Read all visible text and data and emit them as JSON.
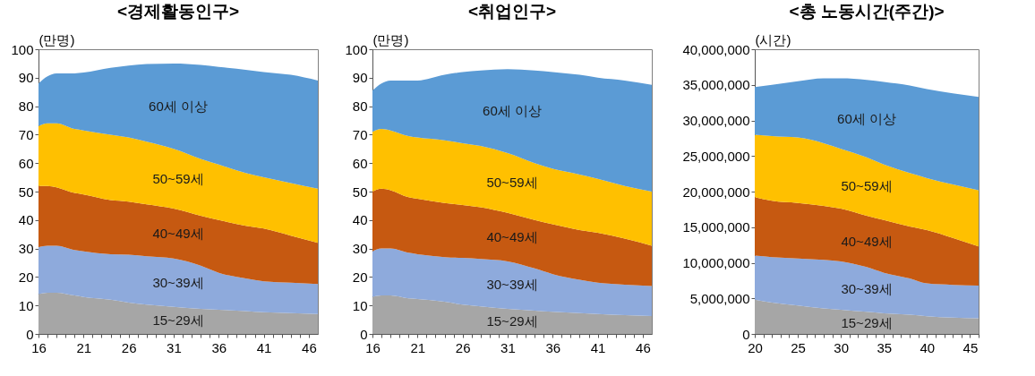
{
  "chart_data": [
    {
      "type": "area",
      "title": "<경제활동인구>",
      "ylabel": "(만명)",
      "stacked": true,
      "grid": false,
      "legend": false,
      "x": [
        16,
        17,
        18,
        20,
        21,
        24,
        26,
        28,
        31,
        34,
        36,
        39,
        41,
        44,
        47
      ],
      "xlim": [
        16,
        47
      ],
      "xticks": [
        16,
        {
          "value": 17,
          "label": null
        },
        {
          "value": 18,
          "label": null
        },
        {
          "value": 19,
          "label": null
        },
        {
          "value": 20,
          "label": null
        },
        21,
        {
          "value": 22,
          "label": null
        },
        {
          "value": 23,
          "label": null
        },
        {
          "value": 24,
          "label": null
        },
        {
          "value": 25,
          "label": null
        },
        26,
        {
          "value": 27,
          "label": null
        },
        {
          "value": 28,
          "label": null
        },
        {
          "value": 29,
          "label": null
        },
        {
          "value": 30,
          "label": null
        },
        31,
        {
          "value": 32,
          "label": null
        },
        {
          "value": 33,
          "label": null
        },
        {
          "value": 34,
          "label": null
        },
        {
          "value": 35,
          "label": null
        },
        36,
        {
          "value": 37,
          "label": null
        },
        {
          "value": 38,
          "label": null
        },
        {
          "value": 39,
          "label": null
        },
        {
          "value": 40,
          "label": null
        },
        41,
        {
          "value": 42,
          "label": null
        },
        {
          "value": 43,
          "label": null
        },
        {
          "value": 44,
          "label": null
        },
        {
          "value": 45,
          "label": null
        },
        46
      ],
      "ylim": [
        0,
        100
      ],
      "yticks": [
        0,
        10,
        20,
        30,
        40,
        50,
        60,
        70,
        80,
        90,
        100
      ],
      "series": [
        {
          "name": "15~29세",
          "color": "#a6a6a6",
          "values": [
            14,
            14.5,
            14.5,
            13.5,
            13,
            12,
            11,
            10.3,
            9.5,
            8.8,
            8.5,
            8,
            7.6,
            7.3,
            7
          ]
        },
        {
          "name": "30~39세",
          "color": "#8eaadc",
          "values": [
            16.5,
            16.5,
            16.5,
            16,
            16,
            16,
            16.8,
            17,
            17,
            15.2,
            13,
            11.5,
            10.9,
            10.7,
            10.5
          ]
        },
        {
          "name": "40~49세",
          "color": "#c65911",
          "values": [
            21.5,
            21,
            20.5,
            20,
            20,
            19,
            18.7,
            18.2,
            17.5,
            17.5,
            18.5,
            18.5,
            18.5,
            16.5,
            14.5
          ]
        },
        {
          "name": "50~59세",
          "color": "#ffc000",
          "values": [
            21,
            22,
            22.5,
            22.5,
            22.5,
            23,
            22.5,
            22,
            21,
            20,
            19.5,
            18.5,
            18,
            18.5,
            19
          ]
        },
        {
          "name": "60세 이상",
          "color": "#5b9bd5",
          "values": [
            15,
            16.5,
            17.5,
            19.5,
            20.3,
            23.5,
            25.3,
            27.3,
            30,
            33,
            34.3,
            36.3,
            37,
            38,
            38
          ]
        }
      ]
    },
    {
      "type": "area",
      "title": "<취업인구>",
      "ylabel": "(만명)",
      "stacked": true,
      "grid": false,
      "legend": false,
      "x": [
        16,
        17,
        18,
        20,
        21,
        24,
        26,
        28,
        31,
        34,
        36,
        39,
        41,
        44,
        47
      ],
      "xlim": [
        16,
        47
      ],
      "xticks": [
        16,
        {
          "value": 17,
          "label": null
        },
        {
          "value": 18,
          "label": null
        },
        {
          "value": 19,
          "label": null
        },
        {
          "value": 20,
          "label": null
        },
        21,
        {
          "value": 22,
          "label": null
        },
        {
          "value": 23,
          "label": null
        },
        {
          "value": 24,
          "label": null
        },
        {
          "value": 25,
          "label": null
        },
        26,
        {
          "value": 27,
          "label": null
        },
        {
          "value": 28,
          "label": null
        },
        {
          "value": 29,
          "label": null
        },
        {
          "value": 30,
          "label": null
        },
        31,
        {
          "value": 32,
          "label": null
        },
        {
          "value": 33,
          "label": null
        },
        {
          "value": 34,
          "label": null
        },
        {
          "value": 35,
          "label": null
        },
        36,
        {
          "value": 37,
          "label": null
        },
        {
          "value": 38,
          "label": null
        },
        {
          "value": 39,
          "label": null
        },
        {
          "value": 40,
          "label": null
        },
        41,
        {
          "value": 42,
          "label": null
        },
        {
          "value": 43,
          "label": null
        },
        {
          "value": 44,
          "label": null
        },
        {
          "value": 45,
          "label": null
        },
        46
      ],
      "ylim": [
        0,
        100
      ],
      "yticks": [
        0,
        10,
        20,
        30,
        40,
        50,
        60,
        70,
        80,
        90,
        100
      ],
      "series": [
        {
          "name": "15~29세",
          "color": "#a6a6a6",
          "values": [
            13,
            13.5,
            13.5,
            12.5,
            12.3,
            11.3,
            10.3,
            9.7,
            8.8,
            8.2,
            7.8,
            7.3,
            7,
            6.6,
            6.3
          ]
        },
        {
          "name": "30~39세",
          "color": "#8eaadc",
          "values": [
            16,
            16.5,
            16.5,
            16,
            15.7,
            15.7,
            16.4,
            16.6,
            16.7,
            14.8,
            13.2,
            11.7,
            11,
            10.7,
            10.5
          ]
        },
        {
          "name": "40~49세",
          "color": "#c65911",
          "values": [
            21,
            21,
            20.5,
            19.5,
            19.5,
            19,
            18.6,
            18.2,
            17,
            17,
            17.5,
            17.5,
            17.5,
            16.2,
            14.2
          ]
        },
        {
          "name": "50~59세",
          "color": "#ffc000",
          "values": [
            21,
            21,
            21,
            21.5,
            21.5,
            22,
            21.7,
            21.5,
            21,
            20,
            19.5,
            19.5,
            19,
            18.5,
            19
          ]
        },
        {
          "name": "60세 이상",
          "color": "#5b9bd5",
          "values": [
            14.5,
            16,
            17.5,
            19.5,
            20,
            23,
            25,
            26.5,
            29.5,
            32.5,
            34,
            35,
            35.5,
            37,
            37.5
          ]
        }
      ]
    },
    {
      "type": "area",
      "title": "<총 노동시간(주간)>",
      "ylabel": "(시간)",
      "stacked": true,
      "grid": false,
      "legend": false,
      "x": [
        20,
        22,
        25,
        28,
        30,
        33,
        35,
        38,
        40,
        43,
        46
      ],
      "xlim": [
        20,
        46
      ],
      "xticks": [
        20,
        {
          "value": 21,
          "label": null
        },
        {
          "value": 22,
          "label": null
        },
        {
          "value": 23,
          "label": null
        },
        {
          "value": 24,
          "label": null
        },
        25,
        {
          "value": 26,
          "label": null
        },
        {
          "value": 27,
          "label": null
        },
        {
          "value": 28,
          "label": null
        },
        {
          "value": 29,
          "label": null
        },
        30,
        {
          "value": 31,
          "label": null
        },
        {
          "value": 32,
          "label": null
        },
        {
          "value": 33,
          "label": null
        },
        {
          "value": 34,
          "label": null
        },
        35,
        {
          "value": 36,
          "label": null
        },
        {
          "value": 37,
          "label": null
        },
        {
          "value": 38,
          "label": null
        },
        {
          "value": 39,
          "label": null
        },
        40,
        {
          "value": 41,
          "label": null
        },
        {
          "value": 42,
          "label": null
        },
        {
          "value": 43,
          "label": null
        },
        {
          "value": 44,
          "label": null
        },
        45,
        {
          "value": 46,
          "label": null
        }
      ],
      "ylim": [
        0,
        40000000
      ],
      "yticks": [
        0,
        {
          "value": 5000000,
          "label": "5,000,000"
        },
        {
          "value": 10000000,
          "label": "10,000,000"
        },
        {
          "value": 15000000,
          "label": "15,000,000"
        },
        {
          "value": 20000000,
          "label": "20,000,000"
        },
        {
          "value": 25000000,
          "label": "25,000,000"
        },
        {
          "value": 30000000,
          "label": "30,000,000"
        },
        {
          "value": 35000000,
          "label": "35,000,000"
        },
        {
          "value": 40000000,
          "label": "40,000,000"
        }
      ],
      "series": [
        {
          "name": "15~29세",
          "color": "#a6a6a6",
          "values": [
            4800000,
            4400000,
            4000000,
            3600000,
            3400000,
            3100000,
            2900000,
            2700000,
            2500000,
            2300000,
            2200000
          ]
        },
        {
          "name": "30~39세",
          "color": "#8eaadc",
          "values": [
            6200000,
            6400000,
            6600000,
            6800000,
            6800000,
            6300000,
            5700000,
            5100000,
            4600000,
            4600000,
            4600000
          ]
        },
        {
          "name": "40~49세",
          "color": "#c65911",
          "values": [
            8200000,
            7900000,
            7800000,
            7600000,
            7400000,
            7200000,
            7400000,
            7300000,
            7500000,
            6600000,
            5500000
          ]
        },
        {
          "name": "50~59세",
          "color": "#ffc000",
          "values": [
            8800000,
            9100000,
            9200000,
            8800000,
            8400000,
            8200000,
            7800000,
            7500000,
            7300000,
            7500000,
            7900000
          ]
        },
        {
          "name": "60세 이상",
          "color": "#5b9bd5",
          "values": [
            6700000,
            7200000,
            7900000,
            9100000,
            9900000,
            10900000,
            11600000,
            12300000,
            12500000,
            12800000,
            13100000
          ]
        }
      ]
    }
  ]
}
